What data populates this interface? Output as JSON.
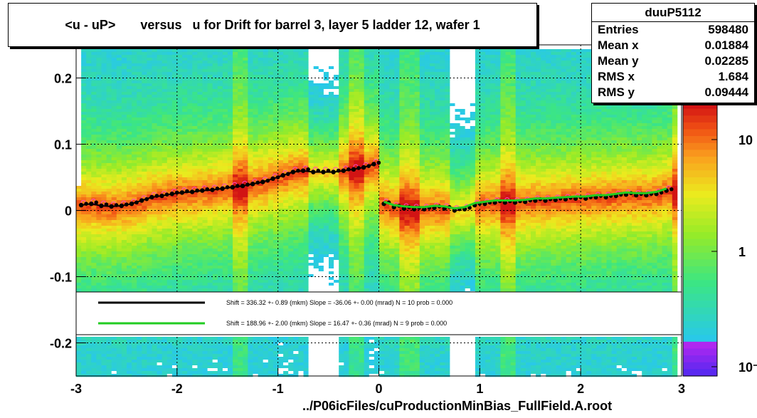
{
  "title": "<u - uP>       versus   u for Drift for barrel 3, layer 5 ladder 12, wafer 1",
  "stats": {
    "name": "duuP5112",
    "rows": [
      {
        "label": "Entries",
        "value": "598480"
      },
      {
        "label": "Mean x",
        "value": "0.01884"
      },
      {
        "label": "Mean y",
        "value": "0.02285"
      },
      {
        "label": "RMS x",
        "value": "1.684"
      },
      {
        "label": "RMS y",
        "value": "0.09444"
      }
    ]
  },
  "footer": "../P06icFiles/cuProductionMinBias_FullField.A.root",
  "legend": {
    "rows": [
      {
        "color": "#000000",
        "text": "Shift =   336.32 +- 0.89 (mkm) Slope =   -36.06 +- 0.00 (mrad)  N = 10 prob = 0.000"
      },
      {
        "color": "#22cc22",
        "text": "Shift =   188.96 +- 2.00 (mkm) Slope =    16.47 +- 0.36 (mrad)  N = 9 prob = 0.000"
      }
    ]
  },
  "colors": {
    "black_fit": "#000000",
    "green_fit": "#22cc22",
    "profile_markers": "#ff44cc"
  },
  "chart_data": {
    "type": "heatmap",
    "xlim": [
      -3,
      3
    ],
    "ylim": [
      -0.25,
      0.25
    ],
    "x_ticks": [
      "-3",
      "-2",
      "-1",
      "0",
      "1",
      "2",
      "3"
    ],
    "y_ticks": [
      "-0.2",
      "-0.1",
      "0",
      "0.1",
      "0.2"
    ],
    "z_ticks": [
      "10",
      "1",
      "10⁻¹"
    ],
    "z_scale": "log",
    "grid": true,
    "series": [
      {
        "name": "profile",
        "x": [
          -2.95,
          -2.85,
          -2.75,
          -2.65,
          -2.55,
          -2.45,
          -2.35,
          -2.25,
          -2.15,
          -2.05,
          -1.95,
          -1.85,
          -1.75,
          -1.65,
          -1.55,
          -1.45,
          -1.35,
          -1.25,
          -1.15,
          -1.05,
          -0.95,
          -0.85,
          -0.75,
          -0.65,
          -0.55,
          -0.45,
          -0.35,
          -0.25,
          -0.15,
          -0.05,
          0.05,
          0.15,
          0.25,
          0.35,
          0.45,
          0.55,
          0.65,
          0.75,
          0.85,
          0.95,
          1.05,
          1.15,
          1.25,
          1.35,
          1.45,
          1.55,
          1.65,
          1.75,
          1.85,
          1.95,
          2.05,
          2.15,
          2.25,
          2.35,
          2.45,
          2.55,
          2.65,
          2.75,
          2.85
        ],
        "y": [
          0.008,
          0.01,
          0.007,
          0.006,
          0.007,
          0.01,
          0.015,
          0.02,
          0.022,
          0.025,
          0.027,
          0.028,
          0.03,
          0.031,
          0.033,
          0.035,
          0.037,
          0.04,
          0.043,
          0.048,
          0.053,
          0.058,
          0.06,
          0.058,
          0.058,
          0.058,
          0.06,
          0.062,
          0.065,
          0.07,
          0.01,
          0.005,
          0.003,
          0.002,
          0.002,
          0.004,
          0.003,
          0.0,
          0.002,
          0.008,
          0.01,
          0.012,
          0.012,
          0.012,
          0.013,
          0.015,
          0.015,
          0.016,
          0.017,
          0.018,
          0.018,
          0.02,
          0.02,
          0.022,
          0.024,
          0.023,
          0.023,
          0.025,
          0.03
        ]
      }
    ]
  }
}
